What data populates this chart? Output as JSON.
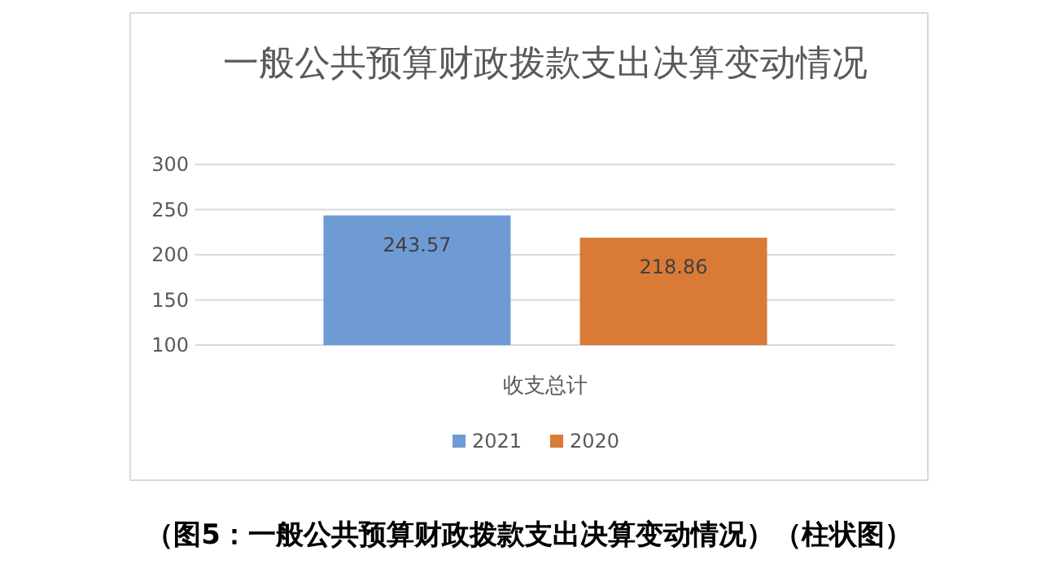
{
  "chart_data": {
    "type": "bar",
    "title": "一般公共预算财政拨款支出决算变动情况",
    "xlabel": "收支总计",
    "categories": [
      null
    ],
    "series": [
      {
        "name": "2021",
        "color": "#6f9bd5",
        "values": [
          243.57
        ]
      },
      {
        "name": "2020",
        "color": "#d97b37",
        "values": [
          218.86
        ]
      }
    ],
    "ylim": [
      100,
      300
    ],
    "yticks": [
      100,
      150,
      200,
      250,
      300
    ],
    "grid": "y",
    "legend": "bottom",
    "data_labels": true,
    "annotations": [
      "（图5：一般公共预算财政拨款支出决算变动情况）（柱状图）"
    ]
  }
}
